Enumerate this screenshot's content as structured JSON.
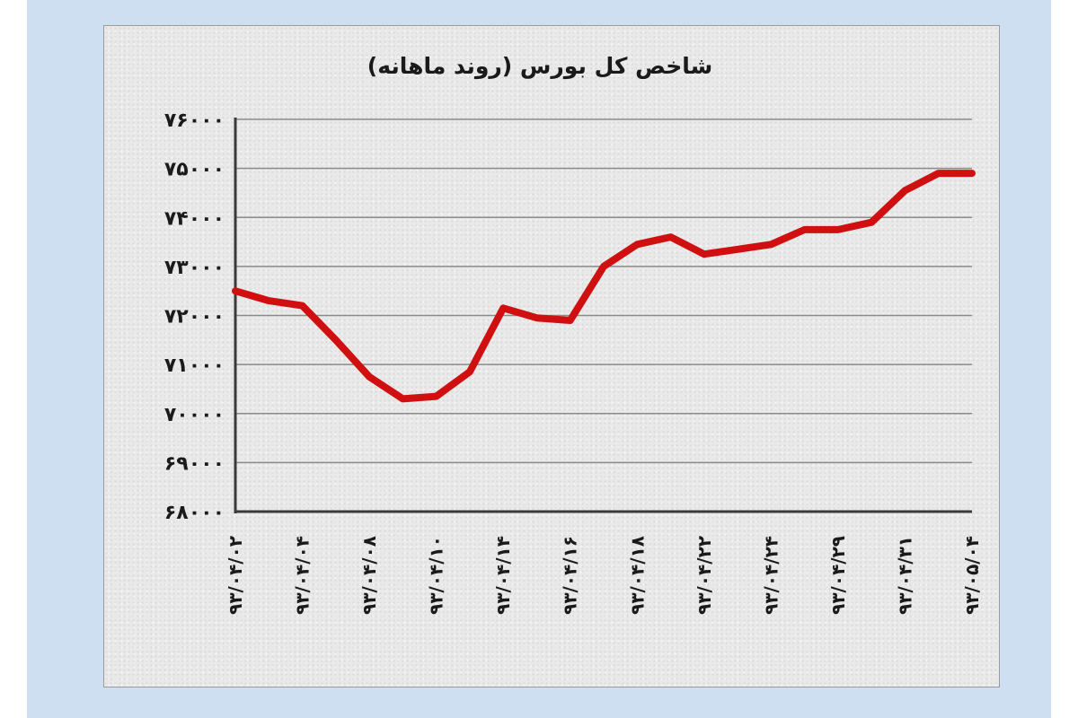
{
  "chart_data": {
    "type": "line",
    "title": "شاخص کل بورس (روند ماهانه)",
    "xlabel": "",
    "ylabel": "",
    "ylim": [
      68000,
      76000
    ],
    "y_ticks": [
      "۷۶۰۰۰",
      "۷۵۰۰۰",
      "۷۴۰۰۰",
      "۷۳۰۰۰",
      "۷۲۰۰۰",
      "۷۱۰۰۰",
      "۷۰۰۰۰",
      "۶۹۰۰۰",
      "۶۸۰۰۰"
    ],
    "y_tick_values": [
      76000,
      75000,
      74000,
      73000,
      72000,
      71000,
      70000,
      69000,
      68000
    ],
    "x_tick_labels": [
      "۹۳/۰۴/۰۲",
      "۹۳/۰۴/۰۴",
      "۹۳/۰۴/۰۸",
      "۹۳/۰۴/۱۰",
      "۹۳/۰۴/۱۴",
      "۹۳/۰۴/۱۶",
      "۹۳/۰۴/۱۸",
      "۹۳/۰۴/۲۲",
      "۹۳/۰۴/۲۴",
      "۹۳/۰۴/۲۹",
      "۹۳/۰۴/۳۱",
      "۹۳/۰۵/۰۴"
    ],
    "grid": true,
    "line_color": "#d01010",
    "series": [
      {
        "x": [
          0,
          0.5,
          1,
          1.5,
          2,
          2.5,
          3,
          3.5,
          4,
          4.5,
          5,
          5.5,
          6,
          6.5,
          7,
          7.5,
          8,
          8.5,
          9,
          9.5,
          10,
          10.5,
          11
        ],
        "values": [
          72500,
          72300,
          72200,
          71500,
          70750,
          70300,
          70350,
          70850,
          72150,
          71950,
          71900,
          73000,
          73450,
          73600,
          73250,
          73350,
          73450,
          73750,
          73750,
          73900,
          74550,
          74900,
          74900
        ]
      }
    ]
  }
}
